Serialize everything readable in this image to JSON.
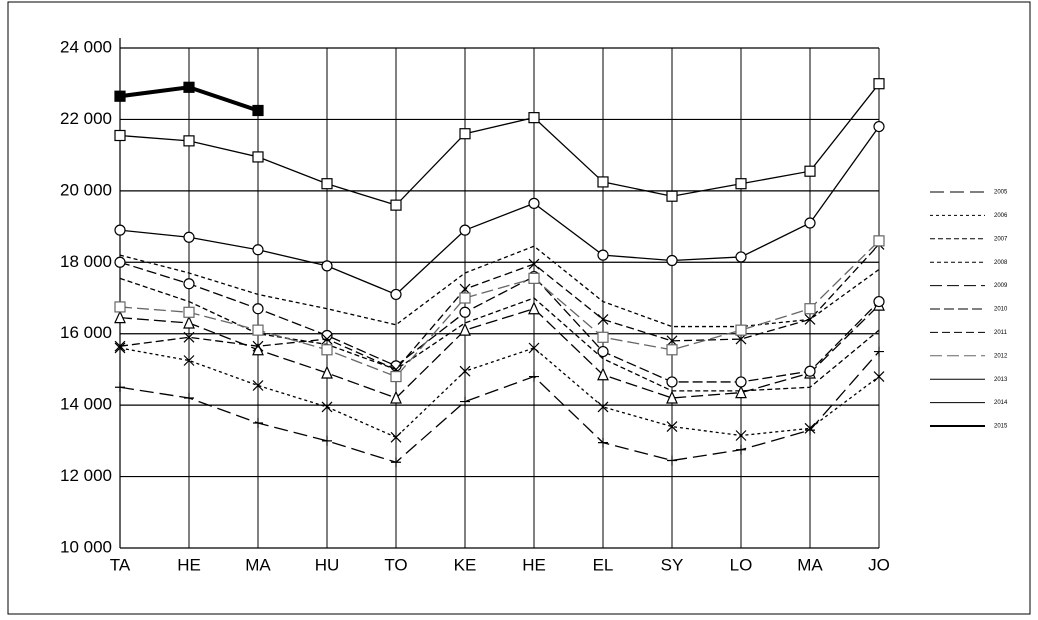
{
  "chart_data": {
    "type": "line",
    "categories": [
      "TA",
      "HE",
      "MA",
      "HU",
      "TO",
      "KE",
      "HE",
      "EL",
      "SY",
      "LO",
      "MA",
      "JO"
    ],
    "ylim": [
      10000,
      24000
    ],
    "yticks": [
      {
        "value": 10000,
        "label": "10 000"
      },
      {
        "value": 12000,
        "label": "12 000"
      },
      {
        "value": 14000,
        "label": "14 000"
      },
      {
        "value": 16000,
        "label": "16 000"
      },
      {
        "value": 18000,
        "label": "18 000"
      },
      {
        "value": 20000,
        "label": "20 000"
      },
      {
        "value": 22000,
        "label": "22 000"
      },
      {
        "value": 24000,
        "label": "24 000"
      }
    ],
    "grid": true,
    "legend": "right",
    "series": [
      {
        "name": "2005",
        "color": "#000000",
        "dash": "14 6",
        "marker": "plus",
        "values": [
          14500,
          14200,
          13500,
          13000,
          12400,
          14100,
          14800,
          12950,
          12450,
          12750,
          13300,
          15500
        ]
      },
      {
        "name": "2006",
        "color": "#000000",
        "dash": "3 3",
        "marker": "x",
        "values": [
          15600,
          15250,
          14550,
          13950,
          13100,
          14950,
          15600,
          13950,
          13400,
          13150,
          13350,
          14800
        ]
      },
      {
        "name": "2007",
        "color": "#000000",
        "dash": "5 3",
        "marker": "none",
        "values": [
          17550,
          16900,
          16000,
          15700,
          15000,
          16300,
          17000,
          15300,
          14400,
          14400,
          14500,
          16100
        ]
      },
      {
        "name": "2008",
        "color": "#000000",
        "dash": "4 3",
        "marker": "none",
        "values": [
          18200,
          17700,
          17100,
          16700,
          16250,
          17700,
          18450,
          16900,
          16200,
          16200,
          16400,
          17800
        ]
      },
      {
        "name": "2009",
        "color": "#000000",
        "dash": "12 5",
        "marker": "triangle",
        "values": [
          16450,
          16300,
          15550,
          14900,
          14200,
          16100,
          16700,
          14850,
          14200,
          14350,
          14900,
          16800
        ]
      },
      {
        "name": "2010",
        "color": "#000000",
        "dash": "10 4",
        "marker": "circle",
        "values": [
          18000,
          17400,
          16700,
          15950,
          15100,
          16600,
          17600,
          15500,
          14650,
          14650,
          14950,
          16900
        ]
      },
      {
        "name": "2011",
        "color": "#000000",
        "dash": "8 4",
        "marker": "x",
        "values": [
          15650,
          15900,
          15650,
          15850,
          15000,
          17250,
          17950,
          16400,
          15800,
          15850,
          16400,
          18500
        ]
      },
      {
        "name": "2012",
        "color": "#666666",
        "dash": "12 5",
        "marker": "square",
        "values": [
          16750,
          16600,
          16100,
          15550,
          14800,
          17000,
          17550,
          15900,
          15550,
          16100,
          16700,
          18600
        ]
      },
      {
        "name": "2013",
        "color": "#000000",
        "dash": "none",
        "marker": "circle",
        "values": [
          18900,
          18700,
          18350,
          17900,
          17100,
          18900,
          19650,
          18200,
          18050,
          18150,
          19100,
          21800
        ]
      },
      {
        "name": "2014",
        "color": "#000000",
        "dash": "none",
        "marker": "square",
        "values": [
          21550,
          21400,
          20950,
          20200,
          19600,
          21600,
          22050,
          20250,
          19850,
          20200,
          20550,
          23000
        ]
      },
      {
        "name": "2015",
        "color": "#000000",
        "dash": "none",
        "marker": "filled-square",
        "values": [
          22650,
          22900,
          22250,
          null,
          null,
          null,
          null,
          null,
          null,
          null,
          null,
          null
        ]
      }
    ]
  }
}
